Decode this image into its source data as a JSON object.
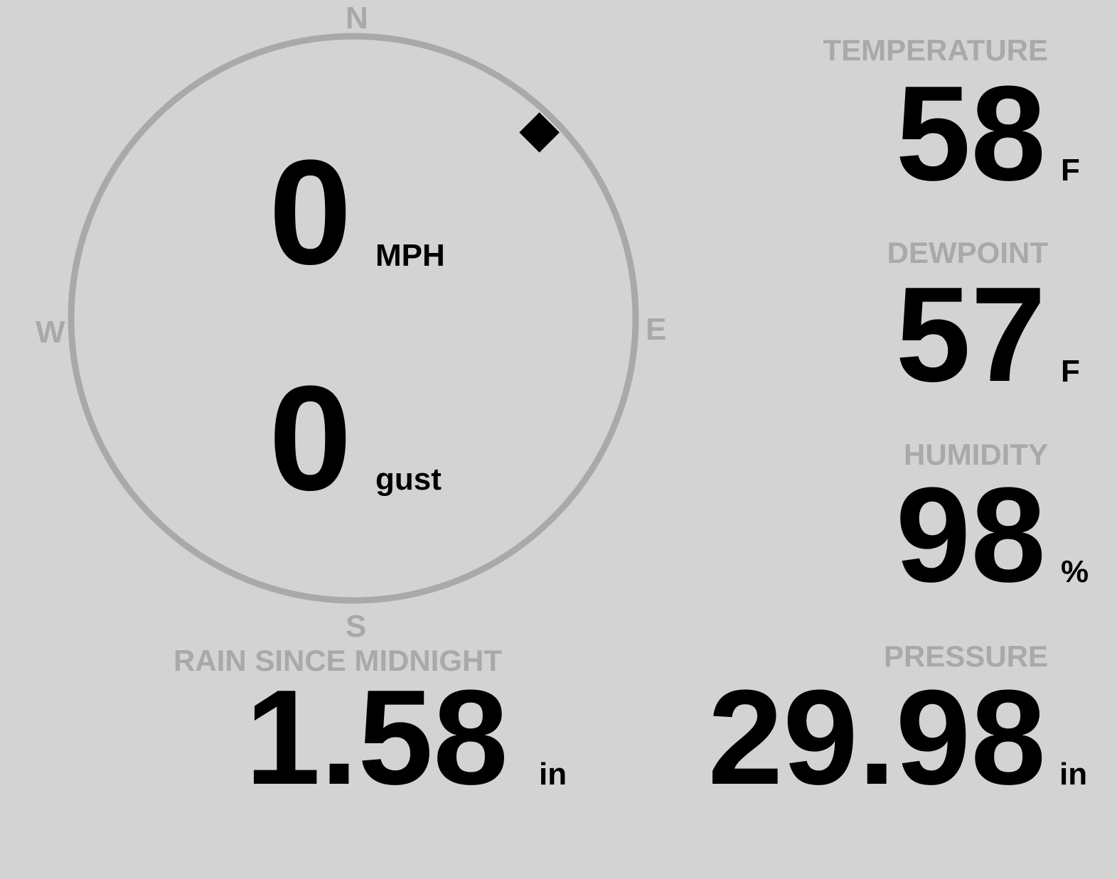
{
  "wind": {
    "speed": "0",
    "speed_unit": "MPH",
    "gust": "0",
    "gust_unit": "gust",
    "direction_degrees": 45,
    "compass": {
      "n": "N",
      "e": "E",
      "s": "S",
      "w": "W"
    }
  },
  "temperature": {
    "label": "TEMPERATURE",
    "value": "58",
    "unit": "F"
  },
  "dewpoint": {
    "label": "DEWPOINT",
    "value": "57",
    "unit": "F"
  },
  "humidity": {
    "label": "HUMIDITY",
    "value": "98",
    "unit": "%"
  },
  "pressure": {
    "label": "PRESSURE",
    "value": "29.98",
    "unit": "in"
  },
  "rain": {
    "label": "RAIN SINCE MIDNIGHT",
    "value": "1.58",
    "unit": "in"
  },
  "colors": {
    "background": "#d3d3d3",
    "label": "#a9a9a9",
    "value": "#000000",
    "ring": "#a9a9a9"
  }
}
